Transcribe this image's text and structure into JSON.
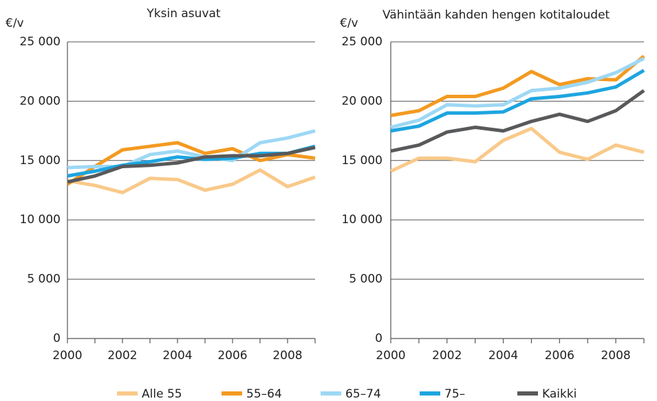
{
  "chart_data": [
    {
      "type": "line",
      "title": "Yksin asuvat",
      "y_label": "€/v",
      "x": [
        2000,
        2001,
        2002,
        2003,
        2004,
        2005,
        2006,
        2007,
        2008,
        2009
      ],
      "xlim": [
        2000,
        2009
      ],
      "xticks": [
        2000,
        2002,
        2004,
        2006,
        2008
      ],
      "ylim": [
        0,
        25000
      ],
      "yticks": [
        0,
        {
          "value": 5000,
          "label": "5 000"
        },
        {
          "value": 10000,
          "label": "10 000"
        },
        {
          "value": 15000,
          "label": "15 000"
        },
        {
          "value": 20000,
          "label": "20 000"
        },
        {
          "value": 25000,
          "label": "25 000"
        }
      ],
      "grid": true,
      "series": [
        {
          "name": "Alle 55",
          "color": "#f9c98a",
          "values": [
            13300,
            12900,
            12300,
            13500,
            13400,
            12500,
            13000,
            14200,
            12800,
            13600
          ]
        },
        {
          "name": "55–64",
          "color": "#f39a21",
          "values": [
            13000,
            14500,
            15900,
            16200,
            16500,
            15600,
            16000,
            15000,
            15500,
            15200
          ]
        },
        {
          "name": "65–74",
          "color": "#9dd8f4",
          "values": [
            14400,
            14500,
            14500,
            15500,
            15800,
            15300,
            15000,
            16500,
            16900,
            17500
          ]
        },
        {
          "name": "75–",
          "color": "#1da5e0",
          "values": [
            13700,
            14100,
            14600,
            14900,
            15300,
            15100,
            15200,
            15600,
            15600,
            16200
          ]
        },
        {
          "name": "Kaikki",
          "color": "#58595b",
          "values": [
            13200,
            13700,
            14500,
            14600,
            14800,
            15300,
            15400,
            15400,
            15600,
            16100
          ]
        }
      ]
    },
    {
      "type": "line",
      "title": "Vähintään kahden hengen kotitaloudet",
      "y_label": "€/v",
      "x": [
        2000,
        2001,
        2002,
        2003,
        2004,
        2005,
        2006,
        2007,
        2008,
        2009
      ],
      "xlim": [
        2000,
        2009
      ],
      "xticks": [
        2000,
        2002,
        2004,
        2006,
        2008
      ],
      "ylim": [
        0,
        25000
      ],
      "yticks": [
        0,
        {
          "value": 5000,
          "label": "5 000"
        },
        {
          "value": 10000,
          "label": "10 000"
        },
        {
          "value": 15000,
          "label": "15 000"
        },
        {
          "value": 20000,
          "label": "20 000"
        },
        {
          "value": 25000,
          "label": "25 000"
        }
      ],
      "grid": true,
      "series": [
        {
          "values": [
            14100,
            15200,
            15200,
            14900,
            16700,
            17700,
            15700,
            15100,
            16300,
            15700
          ]
        },
        {
          "values": [
            18800,
            19200,
            20400,
            20400,
            21100,
            22500,
            21400,
            21900,
            21800,
            23800
          ]
        },
        {
          "values": [
            17800,
            18400,
            19700,
            19600,
            19700,
            20900,
            21100,
            21600,
            22400,
            23600
          ]
        },
        {
          "values": [
            17500,
            17900,
            19000,
            19000,
            19100,
            20200,
            20400,
            20700,
            21200,
            22600
          ]
        },
        {
          "values": [
            15800,
            16300,
            17400,
            17800,
            17500,
            18300,
            18900,
            18300,
            19200,
            20900
          ]
        }
      ]
    }
  ]
}
